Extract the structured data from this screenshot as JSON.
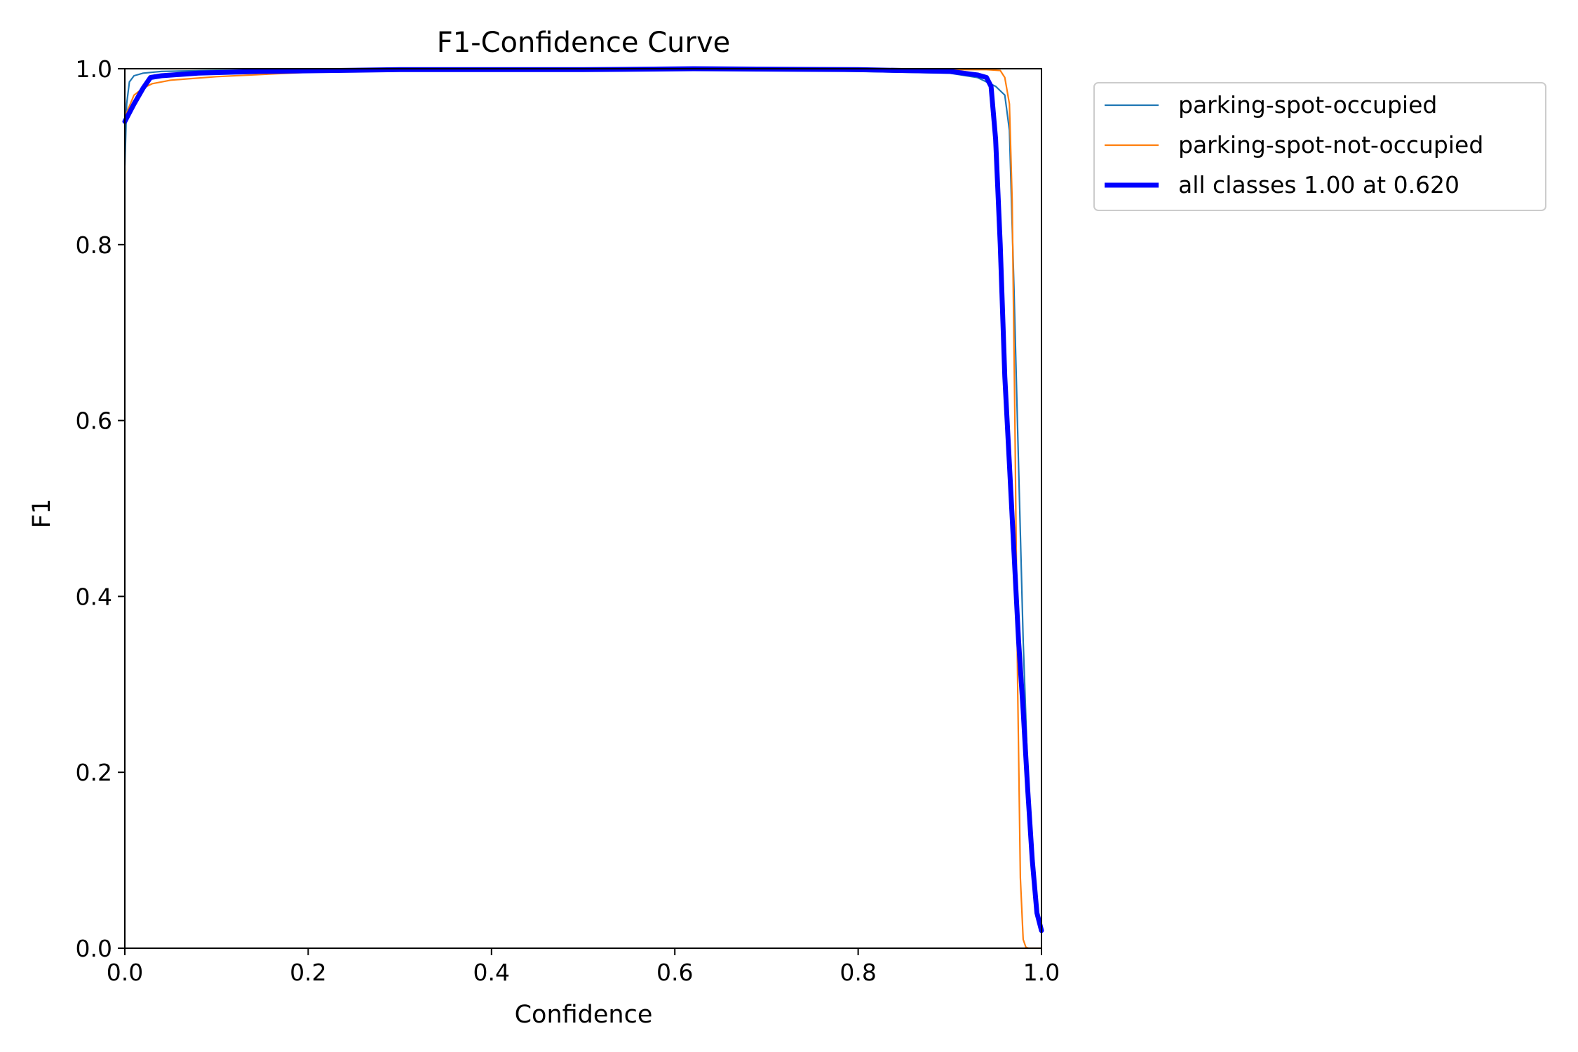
{
  "chart_data": {
    "type": "line",
    "title": "F1-Confidence Curve",
    "xlabel": "Confidence",
    "ylabel": "F1",
    "xlim": [
      0,
      1
    ],
    "ylim": [
      0,
      1
    ],
    "xticks": [
      "0.0",
      "0.2",
      "0.4",
      "0.6",
      "0.8",
      "1.0"
    ],
    "yticks": [
      "0.0",
      "0.2",
      "0.4",
      "0.6",
      "0.8",
      "1.0"
    ],
    "legend_position": "outside-top-right",
    "series": [
      {
        "name": "parking-spot-occupied",
        "color": "#1f77b4",
        "style": "thin",
        "x": [
          0.0,
          0.002,
          0.005,
          0.01,
          0.02,
          0.04,
          0.1,
          0.3,
          0.5,
          0.7,
          0.9,
          0.93,
          0.95,
          0.96,
          0.965,
          0.97,
          0.975,
          0.98,
          0.985,
          0.99,
          0.995,
          1.0
        ],
        "y": [
          0.89,
          0.96,
          0.985,
          0.992,
          0.995,
          0.997,
          0.998,
          0.999,
          0.999,
          0.999,
          0.995,
          0.99,
          0.98,
          0.97,
          0.93,
          0.75,
          0.55,
          0.35,
          0.2,
          0.1,
          0.04,
          0.02
        ]
      },
      {
        "name": "parking-spot-not-occupied",
        "color": "#ff7f0e",
        "style": "thin",
        "x": [
          0.0,
          0.002,
          0.01,
          0.02,
          0.03,
          0.05,
          0.1,
          0.2,
          0.3,
          0.5,
          0.7,
          0.9,
          0.94,
          0.955,
          0.96,
          0.965,
          0.968,
          0.971,
          0.974,
          0.977,
          0.98,
          0.983,
          0.986,
          0.99,
          1.0
        ],
        "y": [
          0.94,
          0.95,
          0.97,
          0.978,
          0.983,
          0.987,
          0.991,
          0.996,
          0.998,
          0.999,
          0.999,
          0.999,
          0.999,
          0.998,
          0.99,
          0.96,
          0.85,
          0.6,
          0.3,
          0.08,
          0.01,
          0.001,
          0.0,
          0.0,
          0.0
        ]
      },
      {
        "name": "all classes 1.00 at 0.620",
        "color": "#0000ff",
        "style": "thick",
        "x": [
          0.0,
          0.005,
          0.01,
          0.02,
          0.028,
          0.04,
          0.08,
          0.15,
          0.3,
          0.5,
          0.62,
          0.8,
          0.9,
          0.93,
          0.94,
          0.945,
          0.95,
          0.955,
          0.96,
          0.965,
          0.97,
          0.975,
          0.98,
          0.985,
          0.99,
          0.995,
          1.0
        ],
        "y": [
          0.94,
          0.95,
          0.96,
          0.978,
          0.99,
          0.992,
          0.995,
          0.997,
          0.999,
          0.999,
          1.0,
          0.999,
          0.997,
          0.993,
          0.99,
          0.98,
          0.92,
          0.8,
          0.65,
          0.55,
          0.45,
          0.35,
          0.27,
          0.18,
          0.1,
          0.04,
          0.02
        ]
      }
    ]
  }
}
